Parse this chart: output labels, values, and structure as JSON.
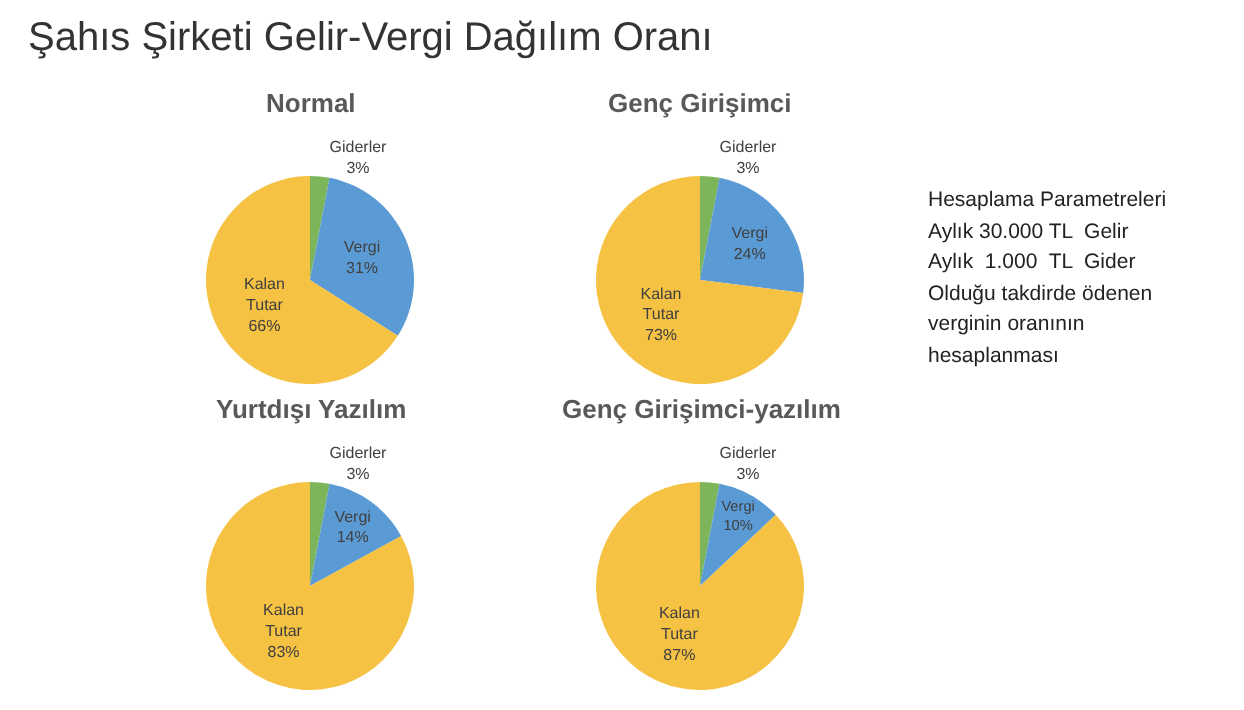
{
  "chart_data": [
    {
      "type": "other",
      "title": "Şahıs Şirketi Gelir-Vergi Dağılım Oranı"
    },
    {
      "type": "pie",
      "title": "Normal",
      "categories": [
        "Giderler",
        "Vergi",
        "Kalan Tutar"
      ],
      "values": [
        3,
        31,
        66
      ],
      "value_labels": [
        "3%",
        "31%",
        "66%"
      ],
      "colors": [
        "#7cb55a",
        "#5b9bd5",
        "#f5c243"
      ]
    },
    {
      "type": "pie",
      "title": "Genç Girişimci",
      "categories": [
        "Giderler",
        "Vergi",
        "Kalan Tutar"
      ],
      "values": [
        3,
        24,
        73
      ],
      "value_labels": [
        "3%",
        "24%",
        "73%"
      ],
      "colors": [
        "#7cb55a",
        "#5b9bd5",
        "#f5c243"
      ]
    },
    {
      "type": "pie",
      "title": "Yurtdışı Yazılım",
      "categories": [
        "Giderler",
        "Vergi",
        "Kalan Tutar"
      ],
      "values": [
        3,
        14,
        83
      ],
      "value_labels": [
        "3%",
        "14%",
        "83%"
      ],
      "colors": [
        "#7cb55a",
        "#5b9bd5",
        "#f5c243"
      ]
    },
    {
      "type": "pie",
      "title": "Genç Girişimci-yazılım",
      "categories": [
        "Giderler",
        "Vergi",
        "Kalan Tutar"
      ],
      "values": [
        3,
        10,
        87
      ],
      "value_labels": [
        "3%",
        "10%",
        "87%"
      ],
      "colors": [
        "#7cb55a",
        "#5b9bd5",
        "#f5c243"
      ]
    },
    {
      "type": "other",
      "annotations": [
        "Hesaplama Parametreleri",
        "Aylık 30.000 TL  Gelir",
        "Aylık  1.000  TL  Gider",
        "Olduğu takdirde ödenen",
        "verginin oranının",
        "hesaplanması"
      ]
    }
  ]
}
